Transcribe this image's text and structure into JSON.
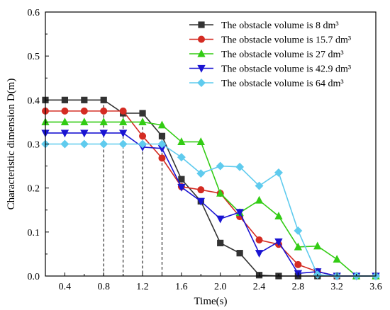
{
  "chart_data": {
    "type": "line",
    "xlabel": "Time(s)",
    "ylabel": "Characteristic dimension D(m)",
    "xlim": [
      0.2,
      3.6
    ],
    "ylim": [
      0.0,
      0.6
    ],
    "xticks": [
      0.4,
      0.8,
      1.2,
      1.6,
      2.0,
      2.4,
      2.8,
      3.2,
      3.6
    ],
    "xtick_labels": [
      "0.4",
      "0.8",
      "1.2",
      "1.6",
      "2.0",
      "2.4",
      "2.8",
      "3.2",
      "3.6"
    ],
    "yticks": [
      0.0,
      0.1,
      0.2,
      0.3,
      0.4,
      0.5,
      0.6
    ],
    "ytick_labels": [
      "0.0",
      "0.1",
      "0.2",
      "0.3",
      "0.4",
      "0.5",
      "0.6"
    ],
    "grid": false,
    "legend_position": "top-right",
    "series": [
      {
        "name": "The obstacle volume is 8 dm³",
        "color": "#333333",
        "marker": "square",
        "x": [
          0.2,
          0.4,
          0.6,
          0.8,
          1.0,
          1.2,
          1.4,
          1.6,
          1.8,
          2.0,
          2.2,
          2.4,
          2.6,
          2.8,
          3.0,
          3.2,
          3.4,
          3.6
        ],
        "y": [
          0.4,
          0.4,
          0.4,
          0.4,
          0.37,
          0.37,
          0.318,
          0.22,
          0.17,
          0.075,
          0.052,
          0.002,
          0.0,
          0.0,
          0.0,
          0.0,
          0.0,
          0.0
        ]
      },
      {
        "name": "The obstacle volume is 15.7 dm³",
        "color": "#d42b22",
        "marker": "circle",
        "x": [
          0.2,
          0.4,
          0.6,
          0.8,
          1.0,
          1.2,
          1.4,
          1.6,
          1.8,
          2.0,
          2.2,
          2.4,
          2.6,
          2.8,
          3.0,
          3.2,
          3.4,
          3.6
        ],
        "y": [
          0.375,
          0.375,
          0.375,
          0.375,
          0.375,
          0.318,
          0.268,
          0.203,
          0.196,
          0.188,
          0.135,
          0.082,
          0.072,
          0.026,
          0.01,
          0.0,
          0.0,
          0.0
        ]
      },
      {
        "name": "The obstacle volume is 27 dm³",
        "color": "#33cc14",
        "marker": "triangle-up",
        "x": [
          0.2,
          0.4,
          0.6,
          0.8,
          1.0,
          1.2,
          1.4,
          1.6,
          1.8,
          2.0,
          2.2,
          2.4,
          2.6,
          2.8,
          3.0,
          3.2,
          3.4,
          3.6
        ],
        "y": [
          0.35,
          0.35,
          0.35,
          0.35,
          0.35,
          0.35,
          0.343,
          0.305,
          0.305,
          0.188,
          0.144,
          0.172,
          0.136,
          0.066,
          0.068,
          0.038,
          0.0,
          0.0
        ]
      },
      {
        "name": "The obstacle volume is 42.9 dm³",
        "color": "#1a14d2",
        "marker": "triangle-down",
        "x": [
          0.2,
          0.4,
          0.6,
          0.8,
          1.0,
          1.2,
          1.4,
          1.6,
          1.8,
          2.0,
          2.2,
          2.4,
          2.6,
          2.8,
          3.0,
          3.2,
          3.4,
          3.6
        ],
        "y": [
          0.325,
          0.325,
          0.325,
          0.325,
          0.325,
          0.293,
          0.29,
          0.202,
          0.17,
          0.13,
          0.145,
          0.052,
          0.078,
          0.006,
          0.01,
          0.0,
          0.0,
          0.0
        ]
      },
      {
        "name": "The obstacle volume is 64 dm³",
        "color": "#5fcbee",
        "marker": "diamond",
        "x": [
          0.2,
          0.4,
          0.6,
          0.8,
          1.0,
          1.2,
          1.4,
          1.6,
          1.8,
          2.0,
          2.2,
          2.4,
          2.6,
          2.8,
          3.0,
          3.2,
          3.4,
          3.6
        ],
        "y": [
          0.3,
          0.3,
          0.3,
          0.3,
          0.3,
          0.3,
          0.3,
          0.27,
          0.233,
          0.25,
          0.248,
          0.205,
          0.235,
          0.103,
          0.003,
          0.0,
          0.0,
          0.0
        ]
      }
    ],
    "reference_lines": [
      {
        "x": 0.8,
        "y": 0.4
      },
      {
        "x": 1.0,
        "y": 0.375
      },
      {
        "x": 1.2,
        "y": 0.35
      },
      {
        "x": 1.4,
        "y": 0.325
      }
    ]
  }
}
